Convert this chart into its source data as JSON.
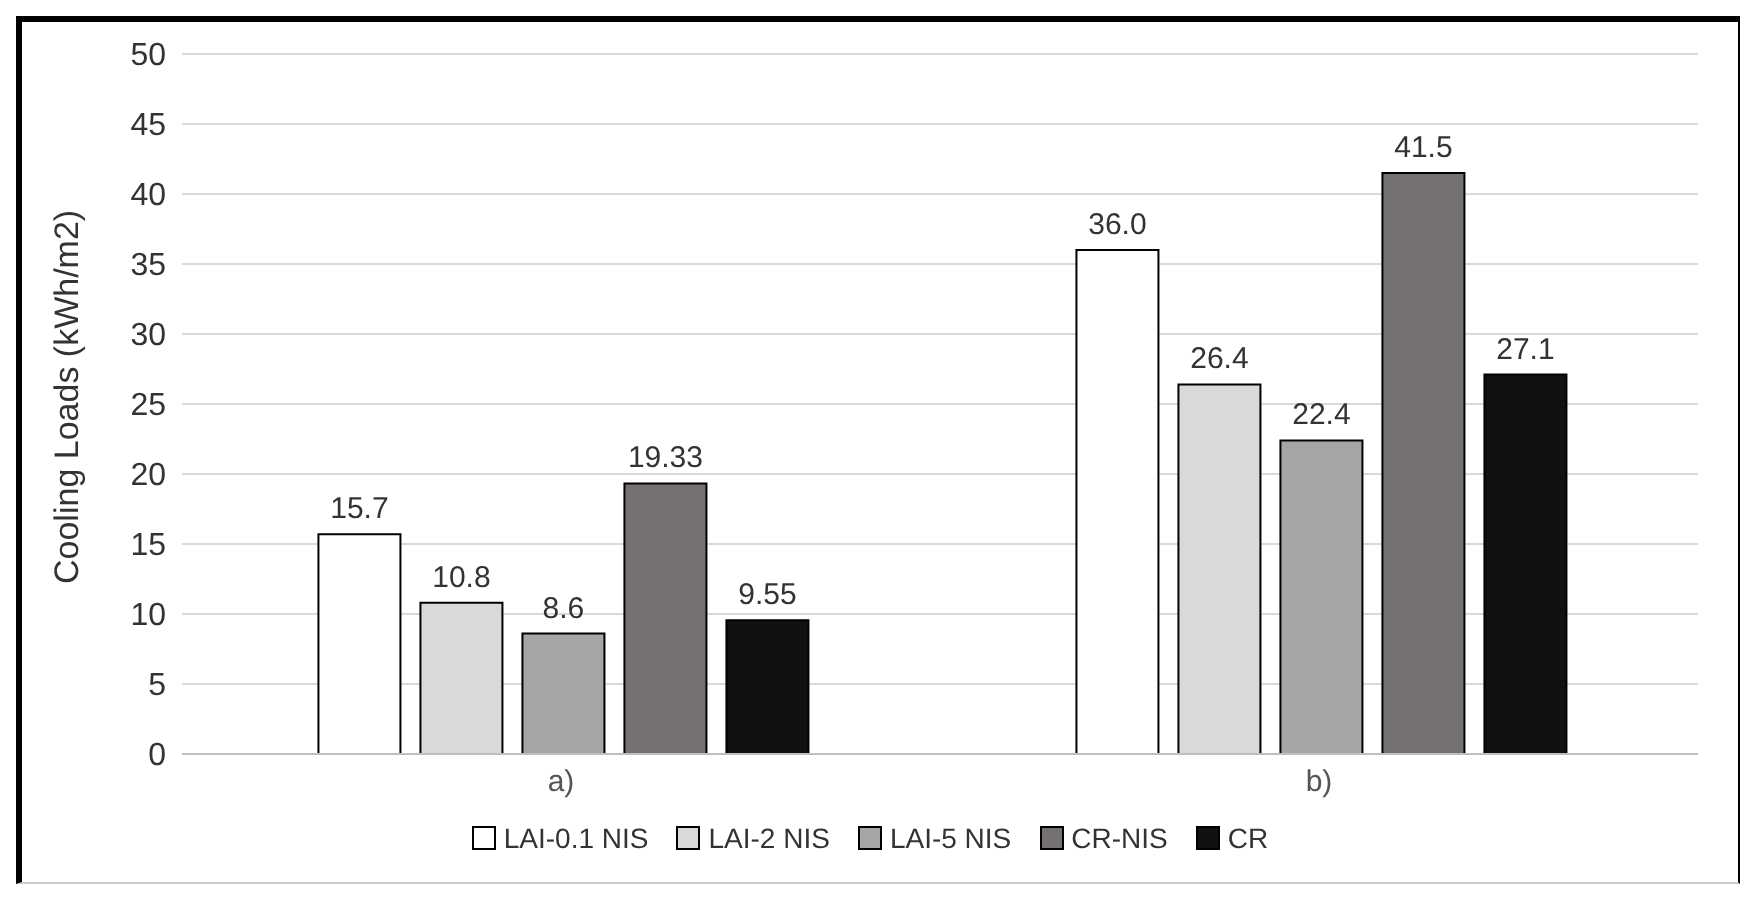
{
  "chart_data": {
    "type": "bar",
    "ylabel": "Cooling Loads (kWh/m2)",
    "categories": [
      "a)",
      "b)"
    ],
    "series": [
      {
        "name": "LAI-0.1 NIS",
        "color": "#ffffff",
        "values": [
          15.7,
          36.0
        ],
        "value_labels": [
          "15.7",
          "36.0"
        ]
      },
      {
        "name": "LAI-2 NIS",
        "color": "#d9d9d9",
        "values": [
          10.8,
          26.4
        ],
        "value_labels": [
          "10.8",
          "26.4"
        ]
      },
      {
        "name": "LAI-5 NIS",
        "color": "#a6a6a6",
        "values": [
          8.6,
          22.4
        ],
        "value_labels": [
          "8.6",
          "22.4"
        ]
      },
      {
        "name": "CR-NIS",
        "color": "#767171",
        "values": [
          19.33,
          41.5
        ],
        "value_labels": [
          "19.33",
          "41.5"
        ]
      },
      {
        "name": "CR",
        "color": "#111111",
        "values": [
          9.55,
          27.1
        ],
        "value_labels": [
          "9.55",
          "27.1"
        ]
      }
    ],
    "ylim": [
      0,
      50
    ],
    "yticks": [
      0,
      5,
      10,
      15,
      20,
      25,
      30,
      35,
      40,
      45,
      50
    ],
    "grid": "y",
    "legend": "bottom"
  }
}
